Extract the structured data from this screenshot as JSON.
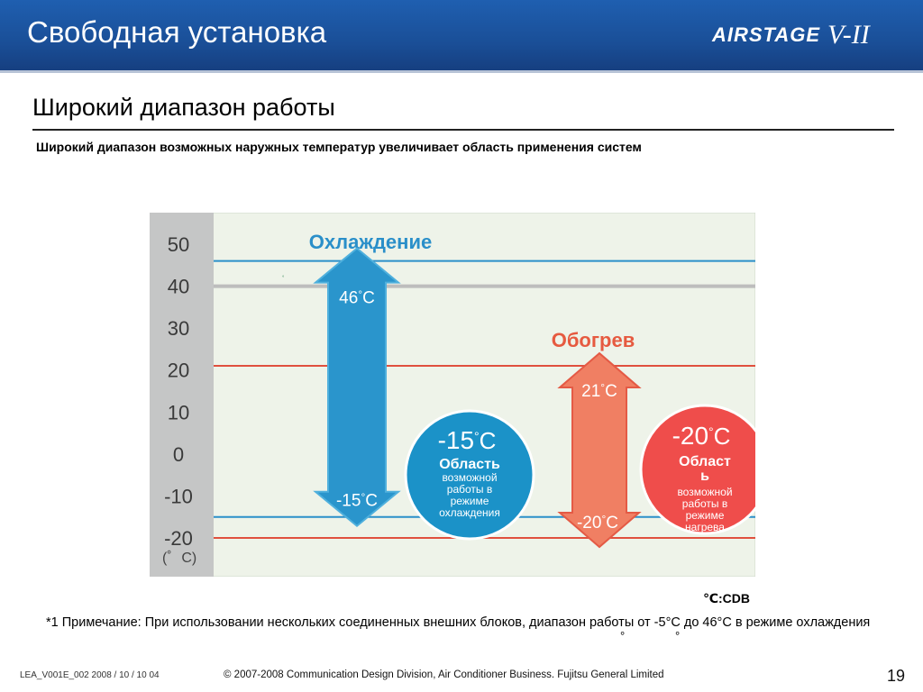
{
  "header": {
    "title": "Свободная установка",
    "logo_brand": "AIRSTAGE",
    "logo_model": "V-II"
  },
  "subtitle": "Широкий диапазон работы",
  "description": "Широкий диапазон возможных наружных температур увеличивает область применения систем",
  "chart_data": {
    "type": "range-arrows",
    "y_ticks": [
      "50",
      "40",
      "30",
      "20",
      "10",
      "0",
      "-10",
      "-20"
    ],
    "y_unit": "(゜C)",
    "ylim": [
      -20,
      50
    ],
    "series": [
      {
        "name": "Охлаждение",
        "max": 46,
        "min": -15,
        "color": "#2a8fc9",
        "max_label": "46",
        "min_label": "-15",
        "unit": "C",
        "deg": "°",
        "badge": {
          "value": "-15",
          "unit": "C",
          "line1": "Область",
          "line2": "возможной",
          "line3": "работы в",
          "line4": "режиме",
          "line5": "охлаждения",
          "color": "#1b92c8"
        }
      },
      {
        "name": "Обогрев",
        "max": 21,
        "min": -20,
        "color": "#f07a62",
        "max_label": "21",
        "min_label": "-20",
        "unit": "C",
        "deg": "°",
        "badge": {
          "value": "-20",
          "unit": "C",
          "line1": "Област",
          "line2": "ь",
          "line3": "возможной",
          "line4": "работы в",
          "line5": "режиме",
          "line6": "нагрева",
          "color": "#ef4d4b"
        }
      }
    ],
    "reference_lines": [
      {
        "value": 46,
        "color": "#2a8fc9"
      },
      {
        "value": 40,
        "color": "#bdbdbd"
      },
      {
        "value": 21,
        "color": "#e0503e"
      },
      {
        "value": -15,
        "color": "#2a8fc9"
      },
      {
        "value": -20,
        "color": "#e0503e"
      }
    ]
  },
  "cdb_label": "℃:CDB",
  "note": "*1 Примечание: При использовании нескольких соединенных внешних блоков, диапазон работы от -5°C до 46°C в режиме охлаждения",
  "stray_marks": {
    "dot": "°",
    "deg1": "°",
    "deg2": "°"
  },
  "footer": {
    "id": "LEA_V001E_002  2008 / 10 / 10 04",
    "copyright": "© 2007-2008 Communication Design Division, Air Conditioner Business. Fujitsu General Limited",
    "page": "19"
  }
}
